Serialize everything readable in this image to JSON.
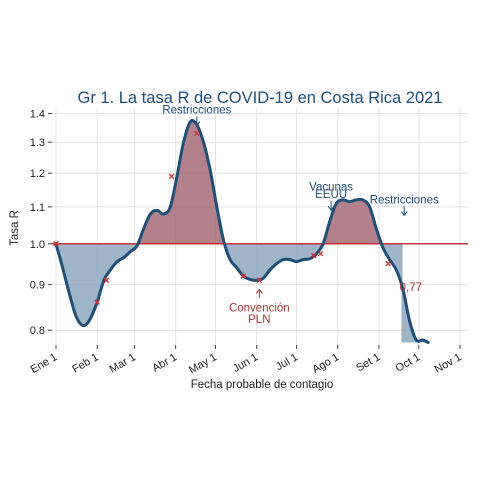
{
  "chart_data": {
    "type": "area",
    "title": "Gr 1. La tasa R de COVID-19 en Costa Rica 2021",
    "xlabel": "Fecha probable de contagio",
    "ylabel": "Tasa R",
    "yscale": "log",
    "ylim": [
      0.77,
      1.42
    ],
    "y_ticks": [
      "0.8",
      "0.9",
      "1.0",
      "1.1",
      "1.2",
      "1.3",
      "1.4"
    ],
    "y_tick_values": [
      0.8,
      0.9,
      1.0,
      1.1,
      1.2,
      1.3,
      1.4
    ],
    "x_ticks": [
      "Ene 1",
      "Feb 1",
      "Mar 1",
      "Abr 1",
      "May 1",
      "Jun 1",
      "Jul 1",
      "Ago 1",
      "Set 1",
      "Oct 1",
      "Nov 1"
    ],
    "x_tick_dates": [
      "2021-01-01",
      "2021-02-01",
      "2021-03-01",
      "2021-04-01",
      "2021-05-01",
      "2021-06-01",
      "2021-07-01",
      "2021-08-01",
      "2021-09-01",
      "2021-10-01",
      "2021-11-01"
    ],
    "reference_line": 1.0,
    "grid": true,
    "series": [
      {
        "points": [
          [
            "2021-01-01",
            1.0
          ],
          [
            "2021-01-06",
            0.94
          ],
          [
            "2021-01-11",
            0.88
          ],
          [
            "2021-01-16",
            0.83
          ],
          [
            "2021-01-21",
            0.81
          ],
          [
            "2021-01-26",
            0.82
          ],
          [
            "2021-02-01",
            0.86
          ],
          [
            "2021-02-06",
            0.91
          ],
          [
            "2021-02-11",
            0.935
          ],
          [
            "2021-02-16",
            0.955
          ],
          [
            "2021-02-21",
            0.965
          ],
          [
            "2021-02-26",
            0.98
          ],
          [
            "2021-03-03",
            0.995
          ],
          [
            "2021-03-08",
            1.04
          ],
          [
            "2021-03-13",
            1.08
          ],
          [
            "2021-03-18",
            1.09
          ],
          [
            "2021-03-23",
            1.08
          ],
          [
            "2021-03-28",
            1.1
          ],
          [
            "2021-04-02",
            1.19
          ],
          [
            "2021-04-07",
            1.3
          ],
          [
            "2021-04-12",
            1.37
          ],
          [
            "2021-04-17",
            1.36
          ],
          [
            "2021-04-22",
            1.3
          ],
          [
            "2021-04-27",
            1.21
          ],
          [
            "2021-05-02",
            1.1
          ],
          [
            "2021-05-07",
            1.01
          ],
          [
            "2021-05-12",
            0.96
          ],
          [
            "2021-05-17",
            0.94
          ],
          [
            "2021-05-22",
            0.92
          ],
          [
            "2021-05-27",
            0.912
          ],
          [
            "2021-06-01",
            0.91
          ],
          [
            "2021-06-06",
            0.915
          ],
          [
            "2021-06-11",
            0.935
          ],
          [
            "2021-06-16",
            0.95
          ],
          [
            "2021-06-21",
            0.96
          ],
          [
            "2021-06-26",
            0.96
          ],
          [
            "2021-07-01",
            0.955
          ],
          [
            "2021-07-06",
            0.96
          ],
          [
            "2021-07-11",
            0.962
          ],
          [
            "2021-07-16",
            0.975
          ],
          [
            "2021-07-21",
            1.0
          ],
          [
            "2021-07-26",
            1.06
          ],
          [
            "2021-07-31",
            1.11
          ],
          [
            "2021-08-05",
            1.12
          ],
          [
            "2021-08-10",
            1.115
          ],
          [
            "2021-08-15",
            1.12
          ],
          [
            "2021-08-20",
            1.12
          ],
          [
            "2021-08-25",
            1.1
          ],
          [
            "2021-08-30",
            1.04
          ],
          [
            "2021-09-04",
            0.99
          ],
          [
            "2021-09-09",
            0.96
          ],
          [
            "2021-09-14",
            0.935
          ],
          [
            "2021-09-19",
            0.89
          ],
          [
            "2021-09-24",
            0.82
          ],
          [
            "2021-09-29",
            0.78
          ],
          [
            "2021-10-04",
            0.78
          ],
          [
            "2021-10-08",
            0.775
          ]
        ]
      }
    ],
    "highlight_points": [
      [
        "2021-01-01",
        1.0
      ],
      [
        "2021-02-01",
        0.86
      ],
      [
        "2021-02-08",
        0.91
      ],
      [
        "2021-03-29",
        1.19
      ],
      [
        "2021-04-17",
        1.33
      ],
      [
        "2021-05-22",
        0.92
      ],
      [
        "2021-06-03",
        0.91
      ],
      [
        "2021-07-14",
        0.97
      ],
      [
        "2021-07-19",
        0.975
      ],
      [
        "2021-09-08",
        0.95
      ]
    ],
    "annotations": [
      {
        "text": "Restricciones",
        "x": "2021-04-17",
        "y": 1.4,
        "color": "#1f4e79",
        "arrow": "down"
      },
      {
        "text": "Vacunas",
        "x": "2021-07-27",
        "y": 1.147,
        "color": "#1f4e79",
        "arrow": "none"
      },
      {
        "text": "EEUU",
        "x": "2021-07-27",
        "y": 1.125,
        "color": "#1f4e79",
        "arrow": "down"
      },
      {
        "text": "Restricciones",
        "x": "2021-09-20",
        "y": 1.11,
        "color": "#1f4e79",
        "arrow": "down"
      },
      {
        "text": "Convención",
        "x": "2021-06-03",
        "y": 0.84,
        "color": "#a33b3b",
        "arrow": "up"
      },
      {
        "text": "PLN",
        "x": "2021-06-03",
        "y": 0.815,
        "color": "#a33b3b",
        "arrow": "none"
      },
      {
        "text": "0,77",
        "x": "2021-09-25",
        "y": 0.885,
        "color": "#a33b3b",
        "arrow": "none"
      }
    ],
    "colors": {
      "line": "#1f4e79",
      "fill_above": "#a56b77",
      "fill_below": "#8fa7bd",
      "reference_line": "#c1272d",
      "markers": "#d32f2f",
      "grid": "#e3e3e3"
    }
  }
}
